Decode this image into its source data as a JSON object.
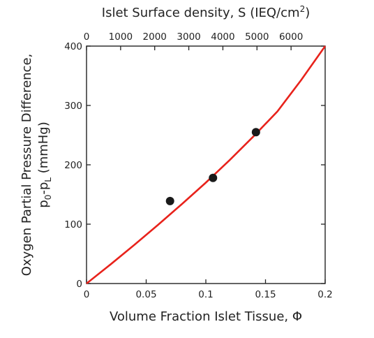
{
  "chart_data": {
    "type": "scatter",
    "title": "",
    "xlabel": "Volume Fraction Islet Tissue, Φ",
    "x_ticks": [
      "0",
      "0.05",
      "0.1",
      "0.15",
      "0.2"
    ],
    "x_tick_values": [
      0,
      0.05,
      0.1,
      0.15,
      0.2
    ],
    "xlim": [
      0,
      0.2
    ],
    "ylabel_line1": "Oxygen Partial Pressure Difference,",
    "ylabel_line2": {
      "p": "p",
      "sub0": "0",
      "dash": "-p",
      "subL": "L",
      "unit": " (mmHg)"
    },
    "y_ticks": [
      "0",
      "100",
      "200",
      "300",
      "400"
    ],
    "y_tick_values": [
      0,
      100,
      200,
      300,
      400
    ],
    "ylim": [
      0,
      400
    ],
    "top_axis": {
      "label_main": "Islet Surface density, S (IEQ/cm",
      "label_sup": "2",
      "label_end": ")",
      "ticks": [
        "0",
        "1000",
        "2000",
        "3000",
        "4000",
        "5000",
        "6000"
      ],
      "tick_values": [
        0,
        1000,
        2000,
        3000,
        4000,
        5000,
        6000
      ],
      "range": [
        0,
        7000
      ]
    },
    "grid": false,
    "series": [
      {
        "kind": "points",
        "color": "#1a1a1a",
        "x": [
          0.07,
          0.106,
          0.142
        ],
        "y": [
          139,
          178,
          255
        ]
      },
      {
        "kind": "line",
        "color": "#e8221b",
        "x": [
          0,
          0.02,
          0.04,
          0.06,
          0.08,
          0.1,
          0.12,
          0.14,
          0.16,
          0.18,
          0.2
        ],
        "y": [
          0,
          32,
          65,
          99,
          134,
          170,
          208,
          248,
          290,
          343,
          400
        ]
      }
    ]
  }
}
